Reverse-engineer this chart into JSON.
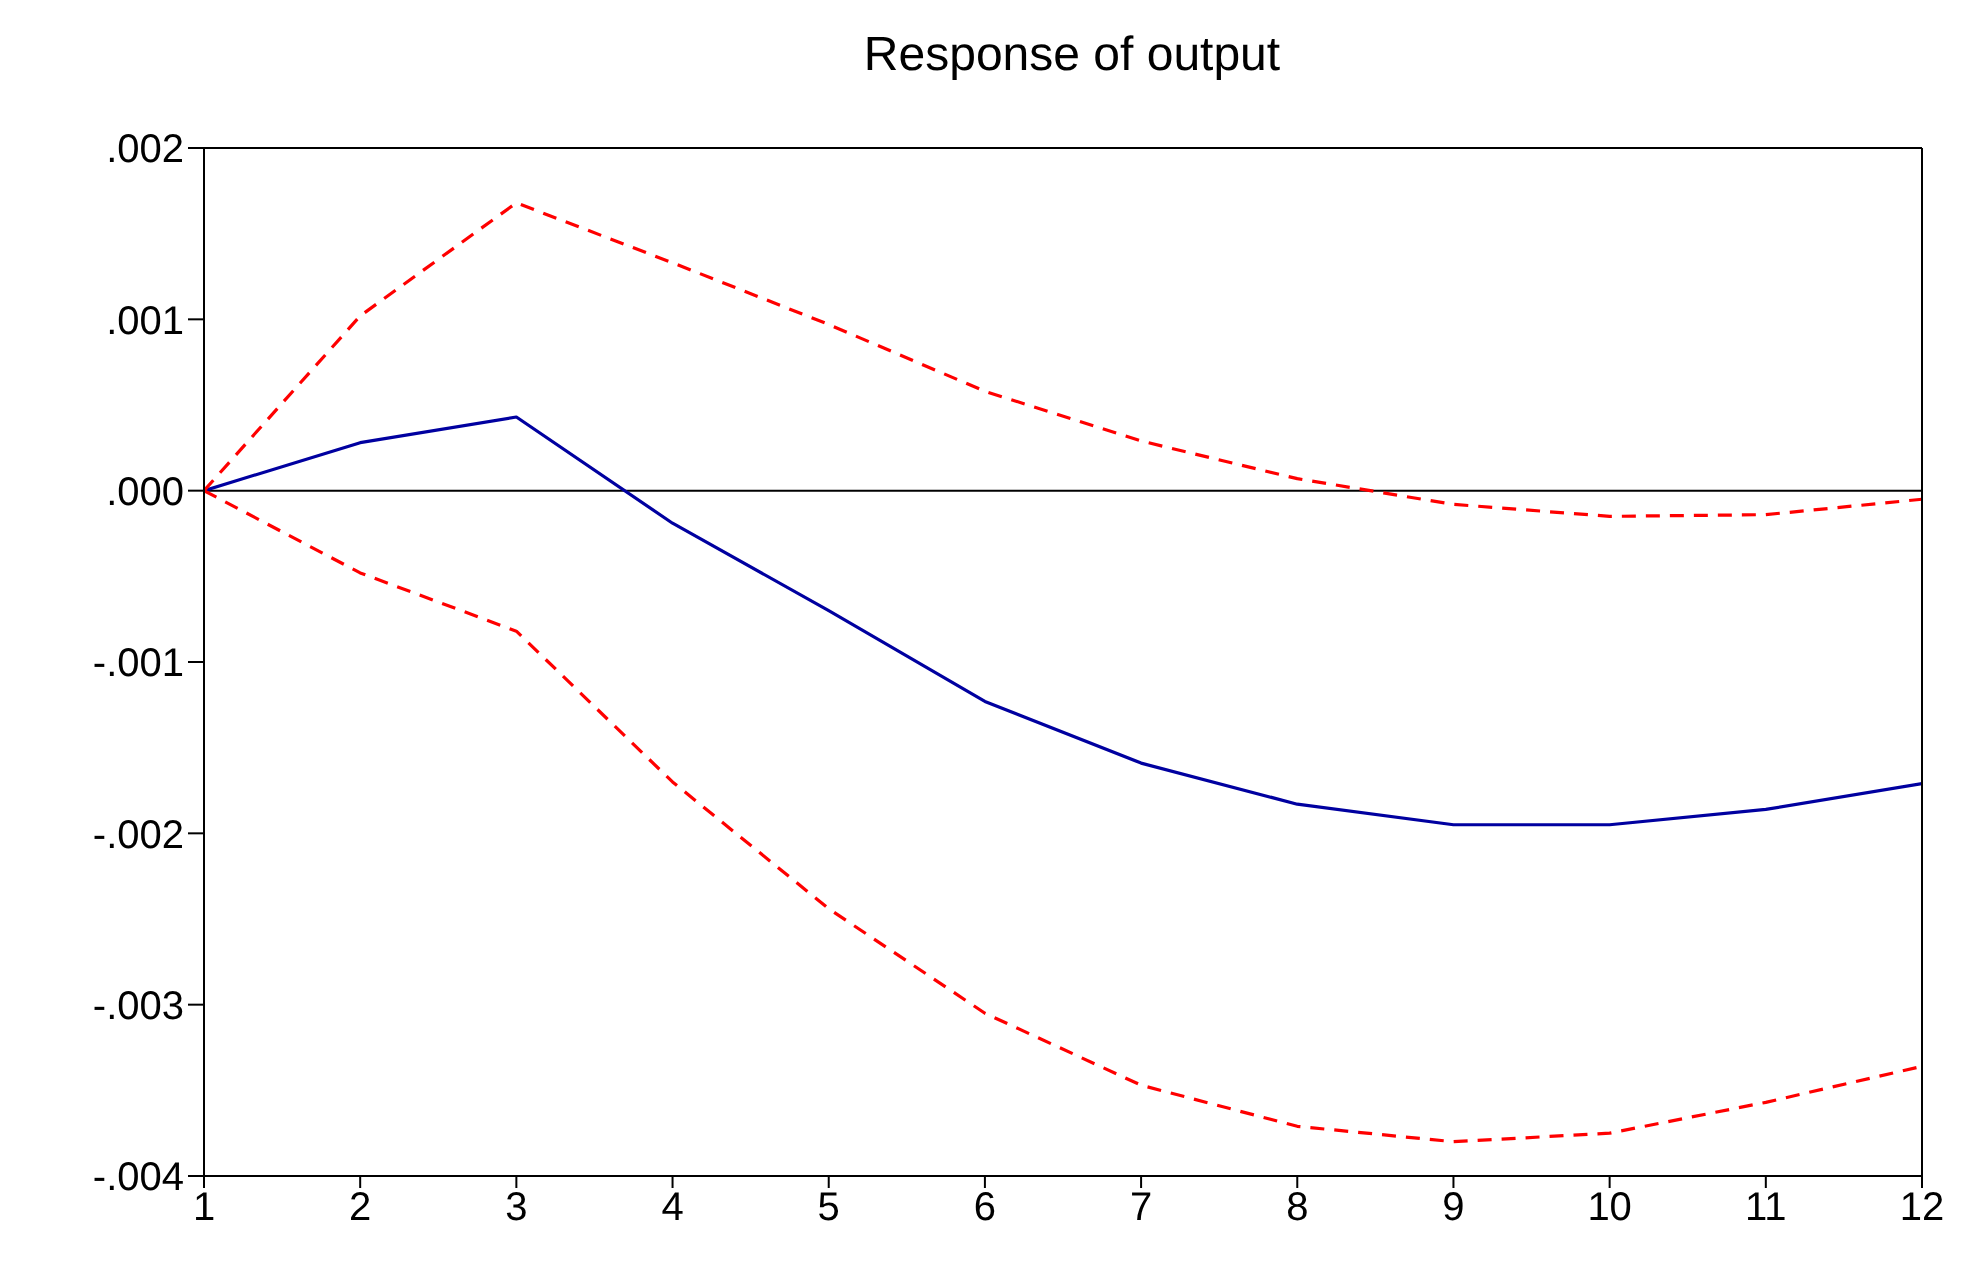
{
  "chart_data": {
    "type": "line",
    "title": "Response of output",
    "x": [
      1,
      2,
      3,
      4,
      5,
      6,
      7,
      8,
      9,
      10,
      11,
      12
    ],
    "xlim": [
      1,
      12
    ],
    "xticks": [
      1,
      2,
      3,
      4,
      5,
      6,
      7,
      8,
      9,
      10,
      11,
      12
    ],
    "ylim": [
      -0.004,
      0.002
    ],
    "yticks": [
      {
        "value": -0.004,
        "label": "-.004"
      },
      {
        "value": -0.003,
        "label": "-.003"
      },
      {
        "value": -0.002,
        "label": "-.002"
      },
      {
        "value": -0.001,
        "label": "-.001"
      },
      {
        "value": 0,
        "label": ".000"
      },
      {
        "value": 0.001,
        "label": ".001"
      },
      {
        "value": 0.002,
        "label": ".002"
      }
    ],
    "series": [
      {
        "color": "#0000a0",
        "line_style": "solid",
        "values": [
          0,
          0.00028,
          0.00043,
          -0.00019,
          -0.0007,
          -0.00123,
          -0.00159,
          -0.00183,
          -0.00195,
          -0.00195,
          -0.00186,
          -0.00171
        ]
      },
      {
        "color": "#ff0000",
        "line_style": "dashed",
        "values": [
          0,
          0.00102,
          0.00168,
          0.00133,
          0.00097,
          0.00058,
          0.00029,
          7e-05,
          -8e-05,
          -0.00015,
          -0.00014,
          -5e-05
        ]
      },
      {
        "color": "#ff0000",
        "line_style": "dashed",
        "values": [
          0,
          -0.00048,
          -0.00082,
          -0.0017,
          -0.00244,
          -0.00305,
          -0.00347,
          -0.00371,
          -0.0038,
          -0.00375,
          -0.00357,
          -0.00336
        ]
      }
    ],
    "ref_lines": [
      {
        "axis": "y",
        "value": 0,
        "color": "#000000",
        "line_style": "solid"
      }
    ]
  }
}
